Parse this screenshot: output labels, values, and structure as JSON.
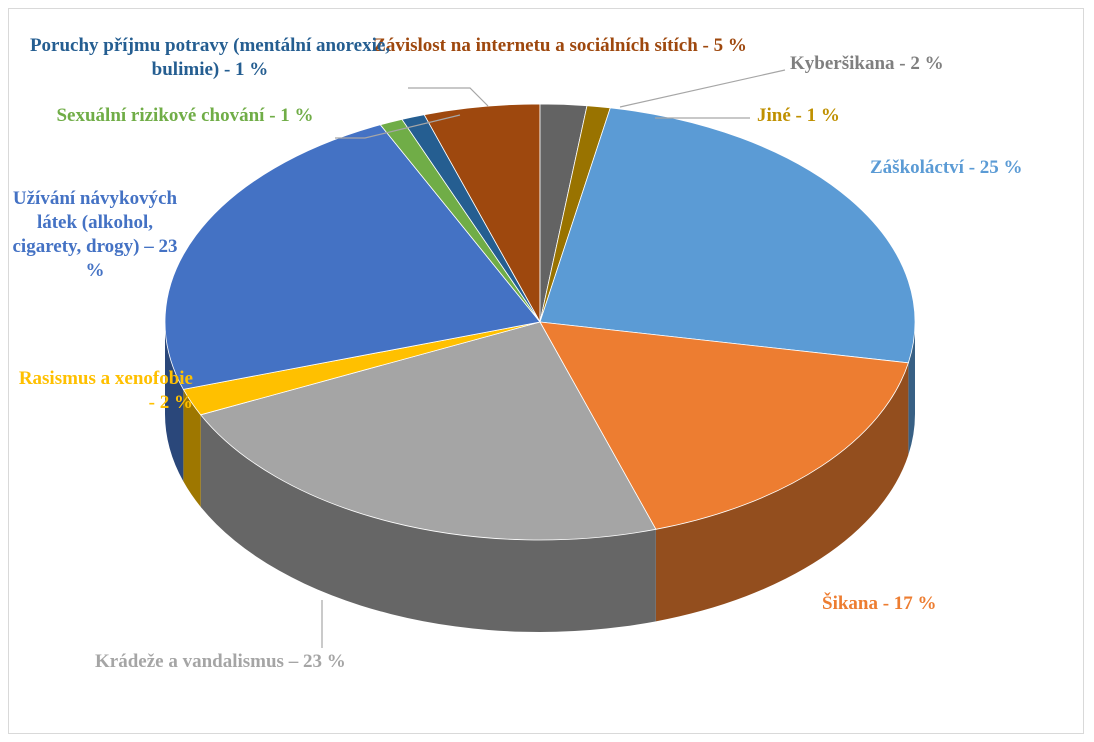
{
  "chart_data": {
    "type": "pie",
    "categories": [
      "Závislost na internetu a sociálních sítích",
      "Kyberšikana",
      "Jiné",
      "Záškoláctví",
      "Šikana",
      "Krádeže a vandalismus",
      "Rasismus a xenofobie",
      "Užívání návykových látek (alkohol, cigarety, drogy)",
      "Sexuální rizikové chování",
      "Poruchy příjmu potravy (mentální anorexie, bulimie)"
    ],
    "values": [
      5,
      2,
      1,
      25,
      17,
      23,
      2,
      23,
      1,
      1
    ],
    "value_labels": [
      "- 5 %",
      "- 2 %",
      "- 1 %",
      "- 25 %",
      "- 17 %",
      "– 23 %",
      "- 2 %",
      "– 23 %",
      "- 1 %",
      "- 1 %"
    ],
    "colors": [
      "#9e480e",
      "#636363",
      "#997300",
      "#5b9bd5",
      "#ed7d31",
      "#a5a5a5",
      "#ffc000",
      "#4472c4",
      "#70ad47",
      "#255e91"
    ]
  }
}
